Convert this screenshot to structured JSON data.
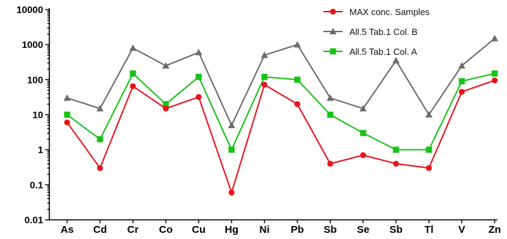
{
  "chart_data": {
    "type": "line",
    "title": "",
    "xlabel": "",
    "ylabel": "",
    "yscale": "log",
    "ylim": [
      0.01,
      10000
    ],
    "yticks": [
      "0.01",
      "0.1",
      "1",
      "10",
      "100",
      "1000",
      "10000"
    ],
    "categories": [
      "As",
      "Cd",
      "Cr",
      "Co",
      "Cu",
      "Hg",
      "Ni",
      "Pb",
      "Sb",
      "Se",
      "Sb",
      "Tl",
      "V",
      "Zn"
    ],
    "legend_position": "top-right",
    "grid": false,
    "series": [
      {
        "name": "MAX conc. Samples",
        "color": "#e8141c",
        "marker": "circle",
        "values": [
          6,
          0.3,
          65,
          15,
          32,
          0.06,
          72,
          20,
          0.4,
          0.7,
          0.4,
          0.3,
          45,
          95
        ]
      },
      {
        "name": "All.5 Tab.1 Col. B",
        "color": "#6b6b6b",
        "marker": "triangle",
        "values": [
          30,
          15,
          800,
          250,
          600,
          5,
          500,
          1000,
          30,
          15,
          350,
          10,
          250,
          1500
        ]
      },
      {
        "name": "All.5 Tab.1 Col. A",
        "color": "#19c219",
        "marker": "square",
        "values": [
          10,
          2,
          150,
          20,
          120,
          1,
          120,
          100,
          10,
          3,
          1,
          1,
          90,
          150
        ]
      }
    ]
  }
}
